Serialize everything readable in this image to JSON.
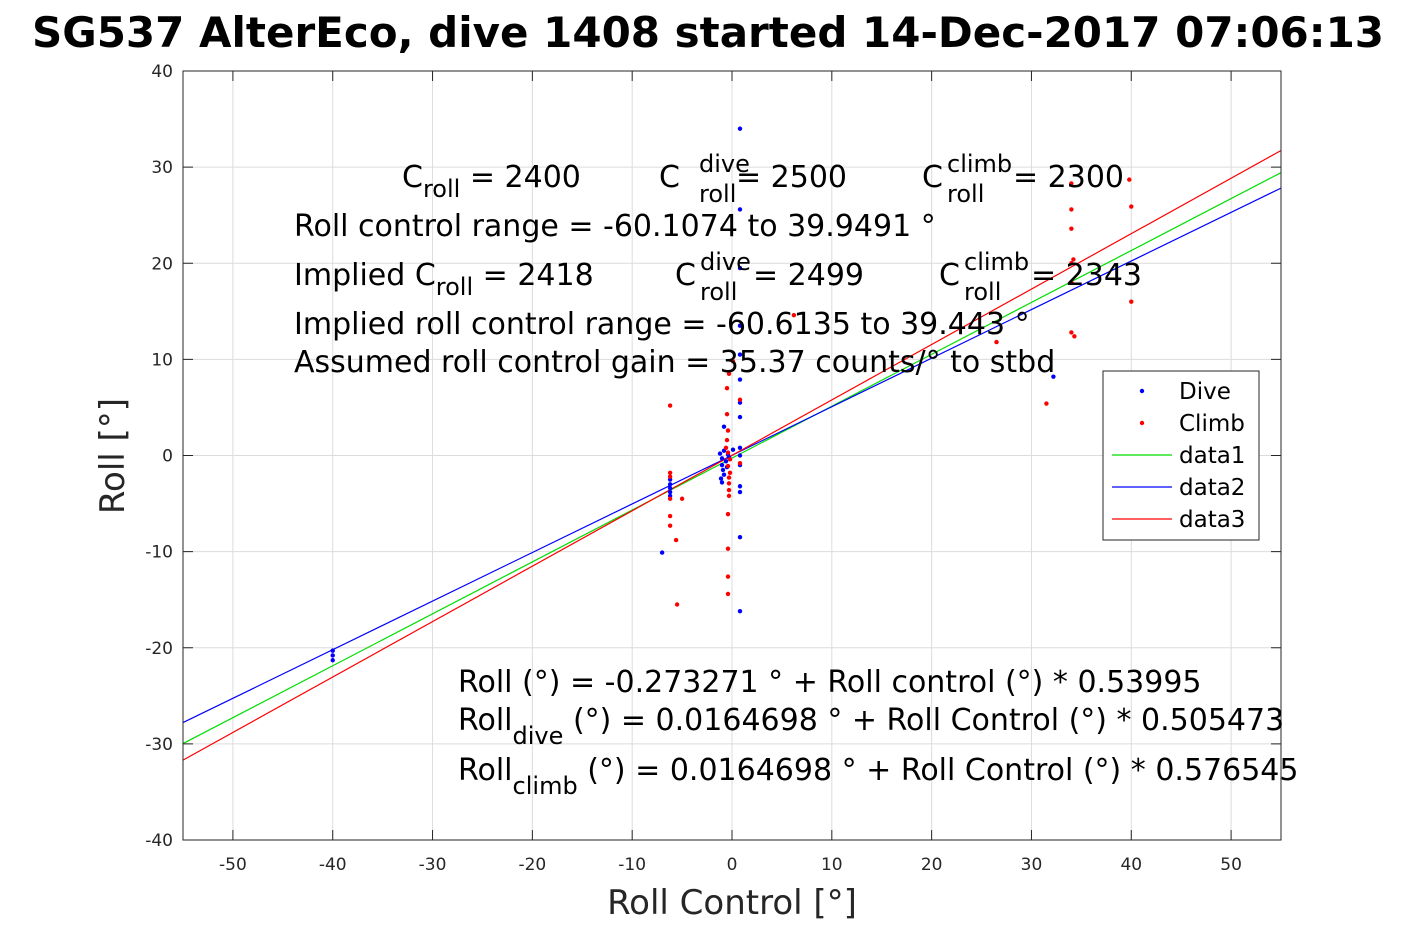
{
  "chart_data": {
    "type": "scatter",
    "title": "SG537 AlterEco, dive 1408 started 14-Dec-2017 07:06:13",
    "xlabel": "Roll Control [°]",
    "ylabel": "Roll [°]",
    "xlim": [
      -55,
      55
    ],
    "ylim": [
      -40,
      40
    ],
    "xticks": [
      -50,
      -40,
      -30,
      -20,
      -10,
      0,
      10,
      20,
      30,
      40,
      50
    ],
    "yticks": [
      -40,
      -30,
      -20,
      -10,
      0,
      10,
      20,
      30,
      40
    ],
    "grid": true,
    "legend_position": "right",
    "series": [
      {
        "name": "Dive",
        "kind": "points",
        "color": "#0000ff",
        "points": [
          [
            0.8,
            34
          ],
          [
            0.8,
            25.6
          ],
          [
            0.8,
            19.5
          ],
          [
            0.8,
            13.5
          ],
          [
            0.8,
            10.5
          ],
          [
            0.8,
            7.9
          ],
          [
            0.8,
            5.5
          ],
          [
            0.8,
            4.0
          ],
          [
            0.8,
            0.8
          ],
          [
            0.8,
            0.0
          ],
          [
            0.8,
            -1.0
          ],
          [
            0.8,
            -3.2
          ],
          [
            0.8,
            -3.8
          ],
          [
            0.8,
            -8.5
          ],
          [
            0.8,
            -16.2
          ],
          [
            -0.8,
            3.0
          ],
          [
            -0.8,
            0.5
          ],
          [
            -1.2,
            0.2
          ],
          [
            -1.0,
            -0.3
          ],
          [
            -0.6,
            -0.6
          ],
          [
            -1.0,
            -1.0
          ],
          [
            -0.9,
            -1.5
          ],
          [
            -0.8,
            -2.0
          ],
          [
            -1.1,
            -2.4
          ],
          [
            -1.0,
            -2.8
          ],
          [
            -0.3,
            -0.2
          ],
          [
            -0.4,
            0.1
          ],
          [
            -0.5,
            -1.2
          ],
          [
            0.1,
            0.6
          ],
          [
            -6.2,
            -2.5
          ],
          [
            -6.2,
            -3.0
          ],
          [
            -6.2,
            -3.4
          ],
          [
            -6.2,
            -3.8
          ],
          [
            -6.2,
            -4.2
          ],
          [
            -7.0,
            -10.1
          ],
          [
            -40,
            -20.3
          ],
          [
            -40,
            -20.8
          ],
          [
            -40,
            -21.3
          ],
          [
            32.2,
            8.2
          ]
        ]
      },
      {
        "name": "Climb",
        "kind": "points",
        "color": "#ff0000",
        "points": [
          [
            -6.2,
            5.2
          ],
          [
            -6.2,
            -1.8
          ],
          [
            -6.2,
            -2.2
          ],
          [
            -6.2,
            -4.5
          ],
          [
            -6.2,
            -6.3
          ],
          [
            -6.2,
            -7.3
          ],
          [
            -5.6,
            -8.8
          ],
          [
            -5.0,
            -4.5
          ],
          [
            -5.5,
            -15.5
          ],
          [
            -0.6,
            0.8
          ],
          [
            -0.4,
            0.3
          ],
          [
            -0.2,
            -0.4
          ],
          [
            -0.4,
            -1.1
          ],
          [
            -0.2,
            -1.8
          ],
          [
            -0.3,
            -2.3
          ],
          [
            -0.3,
            -2.9
          ],
          [
            -0.3,
            -3.6
          ],
          [
            -0.3,
            -4.2
          ],
          [
            -0.5,
            1.6
          ],
          [
            -0.4,
            2.6
          ],
          [
            -0.5,
            4.3
          ],
          [
            -0.5,
            7.0
          ],
          [
            -0.3,
            8.5
          ],
          [
            0.1,
            9.8
          ],
          [
            -0.4,
            -6.1
          ],
          [
            -0.4,
            -9.7
          ],
          [
            -0.4,
            -12.6
          ],
          [
            -0.4,
            -14.4
          ],
          [
            0.8,
            5.8
          ],
          [
            0.8,
            -0.8
          ],
          [
            6.2,
            14.6
          ],
          [
            26.5,
            11.8
          ],
          [
            31.5,
            5.4
          ],
          [
            34.0,
            28.3
          ],
          [
            34.0,
            25.6
          ],
          [
            34.0,
            23.6
          ],
          [
            34.2,
            20.4
          ],
          [
            34.0,
            20.0
          ],
          [
            34.0,
            18.0
          ],
          [
            34.0,
            12.8
          ],
          [
            34.3,
            12.4
          ],
          [
            39.8,
            28.7
          ],
          [
            40.0,
            25.9
          ],
          [
            40.0,
            16.0
          ]
        ]
      },
      {
        "name": "data1",
        "kind": "line",
        "color": "#00dd00",
        "intercept": -0.273271,
        "slope": 0.53995
      },
      {
        "name": "data2",
        "kind": "line",
        "color": "#0000ff",
        "intercept": 0.0164698,
        "slope": 0.505473
      },
      {
        "name": "data3",
        "kind": "line",
        "color": "#ff0000",
        "intercept": 0.0164698,
        "slope": 0.576545
      }
    ],
    "annotations": {
      "c_roll_main": "C",
      "c_roll_sub": "roll",
      "c_roll_val": " = 2400",
      "c_dive_main": "C",
      "c_dive_sup": "dive",
      "c_dive_sub": "roll",
      "c_dive_val": " = 2500",
      "c_climb_main": "C",
      "c_climb_sup": "climb",
      "c_climb_sub": "roll",
      "c_climb_val": " = 2300",
      "roll_control_range": "Roll control range = -60.1074 to 39.9491 °",
      "implied_pre": "Implied C",
      "implied_sub": "roll",
      "implied_val": " = 2418",
      "implied_dive_main": "C",
      "implied_dive_sup": "dive",
      "implied_dive_sub": "roll",
      "implied_dive_val": " = 2499",
      "implied_climb_main": "C",
      "implied_climb_sup": "climb",
      "implied_climb_sub": "roll",
      "implied_climb_val": " = 2343",
      "implied_range": "Implied roll control range = -60.6135 to 39.443 °",
      "gain": "Assumed roll control gain = 35.37 counts/° to stbd",
      "fit_all": "Roll (°) = -0.273271 ° + Roll control (°) * 0.53995",
      "fit_dive_pre": "Roll",
      "fit_dive_sub": "dive",
      "fit_dive_rest": " (°) = 0.0164698 ° + Roll Control (°) * 0.505473",
      "fit_climb_pre": "Roll",
      "fit_climb_sub": "climb",
      "fit_climb_rest": " (°) = 0.0164698 ° + Roll Control (°) * 0.576545"
    }
  }
}
